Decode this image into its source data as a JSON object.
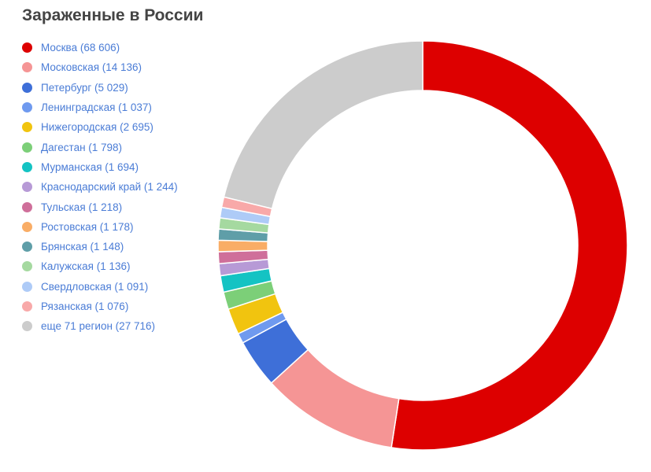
{
  "title": "Зараженные в России",
  "chart_data": {
    "type": "pie",
    "donut": true,
    "title": "Зараженные в России",
    "legend_position": "left",
    "slices": [
      {
        "label": "Москва",
        "value": 68606,
        "legend": "Москва (68 606)",
        "color": "#dd0000"
      },
      {
        "label": "Московская",
        "value": 14136,
        "legend": "Московская (14 136)",
        "color": "#f59595"
      },
      {
        "label": "Петербург",
        "value": 5029,
        "legend": "Петербург (5 029)",
        "color": "#3e6fd8"
      },
      {
        "label": "Ленинградская",
        "value": 1037,
        "legend": "Ленинградская (1 037)",
        "color": "#6f9aef"
      },
      {
        "label": "Нижегородская",
        "value": 2695,
        "legend": "Нижегородская (2 695)",
        "color": "#f1c40f"
      },
      {
        "label": "Дагестан",
        "value": 1798,
        "legend": "Дагестан (1 798)",
        "color": "#7ccf78"
      },
      {
        "label": "Мурманская",
        "value": 1694,
        "legend": "Мурманская (1 694)",
        "color": "#14c3c3"
      },
      {
        "label": "Краснодарский край",
        "value": 1244,
        "legend": "Краснодарский край (1 244)",
        "color": "#b79ad6"
      },
      {
        "label": "Тульская",
        "value": 1218,
        "legend": "Тульская (1 218)",
        "color": "#cf6f9a"
      },
      {
        "label": "Ростовская",
        "value": 1178,
        "legend": "Ростовская (1 178)",
        "color": "#f9ad66"
      },
      {
        "label": "Брянская",
        "value": 1148,
        "legend": "Брянская (1 148)",
        "color": "#5f9ea8"
      },
      {
        "label": "Калужская",
        "value": 1136,
        "legend": "Калужская (1 136)",
        "color": "#a5d9a0"
      },
      {
        "label": "Свердловская",
        "value": 1091,
        "legend": "Свердловская (1 091)",
        "color": "#aecbf7"
      },
      {
        "label": "Рязанская",
        "value": 1076,
        "legend": "Рязанская (1 076)",
        "color": "#f8a9a9"
      },
      {
        "label": "еще 71 регион",
        "value": 27716,
        "legend": "еще 71 регион (27 716)",
        "color": "#cccccc"
      }
    ]
  }
}
